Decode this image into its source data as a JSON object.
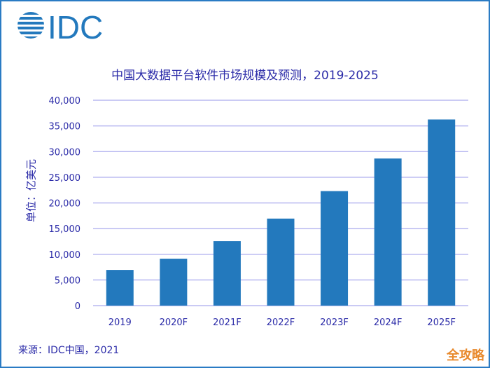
{
  "logo_text": "IDC",
  "colors": {
    "bar": "#2379bd",
    "grid": "#b8b8f0",
    "text": "#2b2ba8",
    "logo": "#2379bd",
    "watermark": "#e8892c"
  },
  "chart_data": {
    "type": "bar",
    "title": "中国大数据平台软件市场规模及预测，2019-2025",
    "ylabel": "单位：亿美元",
    "xlabel": "",
    "categories": [
      "2019",
      "2020F",
      "2021F",
      "2022F",
      "2023F",
      "2024F",
      "2025F"
    ],
    "values": [
      6950,
      9140,
      12550,
      16950,
      22300,
      28650,
      36250
    ],
    "ylim": [
      0,
      40000
    ],
    "yticks": [
      "0",
      "5,000",
      "10,000",
      "15,000",
      "20,000",
      "25,000",
      "30,000",
      "35,000",
      "40,000"
    ],
    "grid": true
  },
  "source": "来源：IDC中国，2021",
  "watermark": "全攻略"
}
